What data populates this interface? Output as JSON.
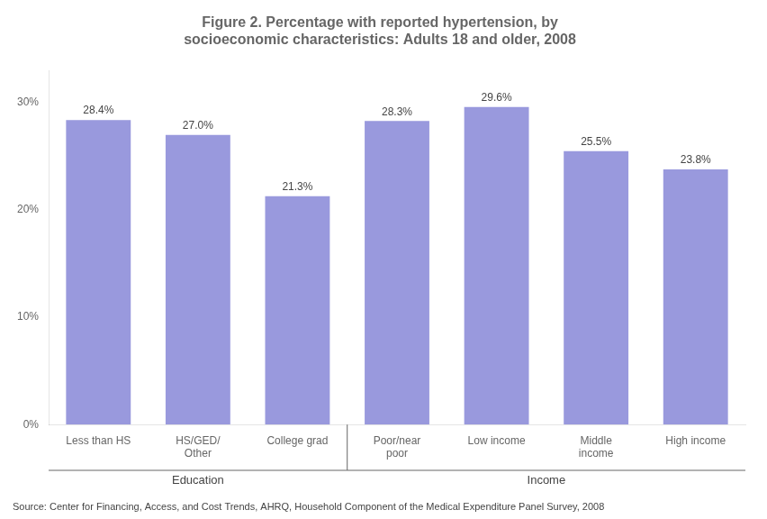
{
  "chart_data": {
    "type": "bar",
    "title": [
      "Figure 2. Percentage with reported hypertension, by",
      "socioeconomic characteristics: Adults 18 and older, 2008"
    ],
    "categories": [
      "Less than HS",
      "HS/GED/\nOther",
      "College grad",
      "Poor/near\npoor",
      "Low income",
      "Middle\nincome",
      "High income"
    ],
    "values": [
      28.4,
      27.0,
      21.3,
      28.3,
      29.6,
      25.5,
      23.8
    ],
    "value_labels": [
      "28.4%",
      "27.0%",
      "21.3%",
      "28.3%",
      "29.6%",
      "25.5%",
      "23.8%"
    ],
    "data_labels": true,
    "color": "#9999DD",
    "ylim": [
      0,
      33
    ],
    "yticks": [
      {
        "value": 0,
        "label": "0%"
      },
      {
        "value": 10,
        "label": "10%"
      },
      {
        "value": 20,
        "label": "20%"
      },
      {
        "value": 30,
        "label": "30%"
      }
    ],
    "grid": false,
    "groups": [
      {
        "label": "Education",
        "categories": [
          "Less than HS",
          "HS/GED/\nOther",
          "College grad"
        ]
      },
      {
        "label": "Income",
        "categories": [
          "Poor/near\npoor",
          "Low income",
          "Middle\nincome",
          "High income"
        ]
      }
    ],
    "source": "Source: Center for Financing, Access, and Cost Trends, AHRQ, Household Component of the Medical Expenditure Panel Survey, 2008"
  }
}
